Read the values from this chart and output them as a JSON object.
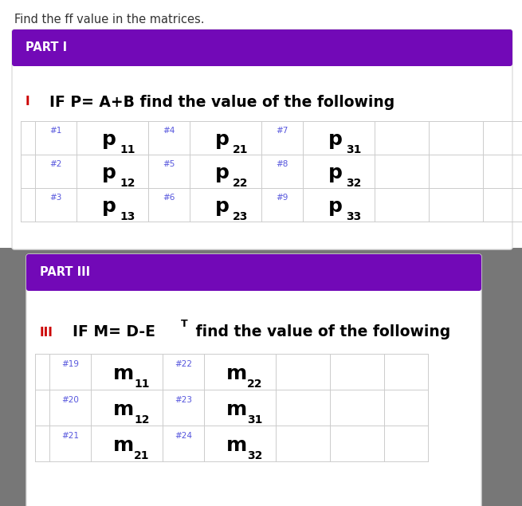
{
  "title": "Find the ff value in the matrices.",
  "part1_header": "PART I",
  "part1_label": "I",
  "part1_title": "IF P= A+B find the value of the following",
  "part2_header": "PART III",
  "part2_label": "III",
  "part2_title": "IF M= D-E",
  "part1_items": [
    {
      "row": 0,
      "tag": "#1",
      "letter": "p",
      "sub": "11",
      "group": 0
    },
    {
      "row": 0,
      "tag": "#4",
      "letter": "p",
      "sub": "21",
      "group": 1
    },
    {
      "row": 0,
      "tag": "#7",
      "letter": "p",
      "sub": "31",
      "group": 2
    },
    {
      "row": 1,
      "tag": "#2",
      "letter": "p",
      "sub": "12",
      "group": 0
    },
    {
      "row": 1,
      "tag": "#5",
      "letter": "p",
      "sub": "22",
      "group": 1
    },
    {
      "row": 1,
      "tag": "#8",
      "letter": "p",
      "sub": "32",
      "group": 2
    },
    {
      "row": 2,
      "tag": "#3",
      "letter": "p",
      "sub": "13",
      "group": 0
    },
    {
      "row": 2,
      "tag": "#6",
      "letter": "p",
      "sub": "23",
      "group": 1
    },
    {
      "row": 2,
      "tag": "#9",
      "letter": "p",
      "sub": "33",
      "group": 2
    }
  ],
  "part2_items": [
    {
      "row": 0,
      "tag": "#19",
      "letter": "m",
      "sub": "11",
      "group": 0
    },
    {
      "row": 0,
      "tag": "#22",
      "letter": "m",
      "sub": "22",
      "group": 1
    },
    {
      "row": 1,
      "tag": "#20",
      "letter": "m",
      "sub": "12",
      "group": 0
    },
    {
      "row": 1,
      "tag": "#23",
      "letter": "m",
      "sub": "31",
      "group": 1
    },
    {
      "row": 2,
      "tag": "#21",
      "letter": "m",
      "sub": "21",
      "group": 0
    },
    {
      "row": 2,
      "tag": "#24",
      "letter": "m",
      "sub": "32",
      "group": 1
    }
  ],
  "purple": "#7209B7",
  "red_label": "#CC0000",
  "blue_tag": "#5555DD",
  "black": "#000000",
  "dark_gray": "#333333",
  "light_gray": "#CCCCCC",
  "white": "#FFFFFF",
  "bg_gray": "#777777",
  "card_border": "#DDDDDD"
}
